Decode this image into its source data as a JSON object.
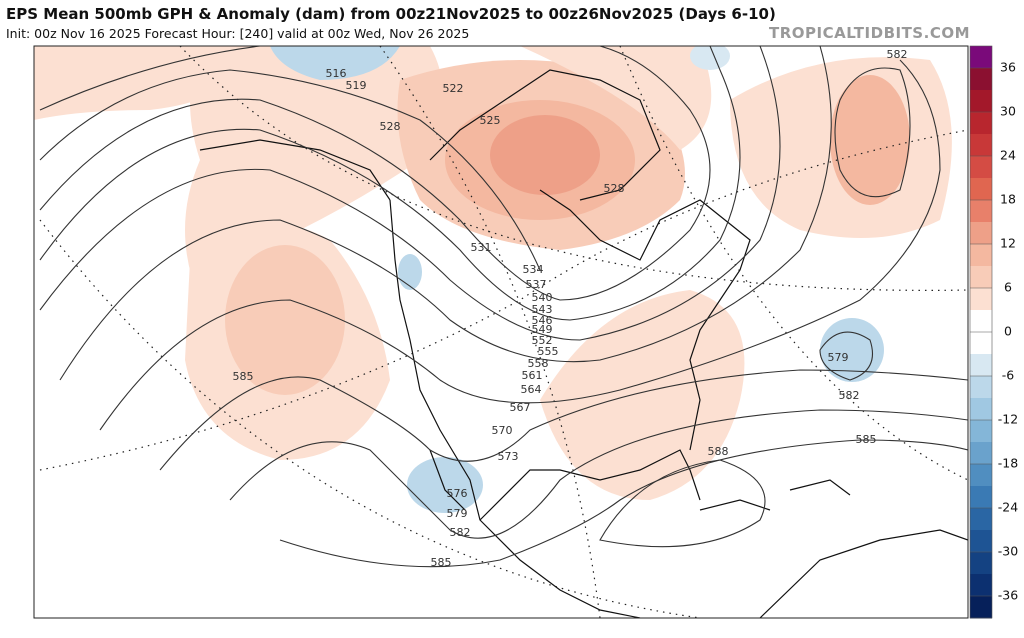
{
  "header": {
    "title": "EPS Mean 500mb GPH & Anomaly (dam) from 00z21Nov2025 to 00z26Nov2025 (Days 6-10)",
    "subtitle": "Init: 00z Nov 16 2025   Forecast Hour: [240]   valid at 00z Wed, Nov 26 2025",
    "credit": "TROPICALTIDBITS.COM"
  },
  "contour_labels": [
    "516",
    "519",
    "522",
    "525",
    "528",
    "528",
    "531",
    "534",
    "537",
    "540",
    "543",
    "546",
    "549",
    "552",
    "555",
    "558",
    "561",
    "564",
    "567",
    "570",
    "573",
    "576",
    "579",
    "582",
    "585",
    "585",
    "588",
    "579",
    "582",
    "585",
    "582"
  ],
  "colorbar": {
    "ticks": [
      "36",
      "30",
      "24",
      "18",
      "12",
      "6",
      "0",
      "-6",
      "-12",
      "-18",
      "-24",
      "-30",
      "-36"
    ],
    "colors": [
      "#7a0a7a",
      "#8b1030",
      "#a3182a",
      "#b8262e",
      "#c83838",
      "#d44c44",
      "#e06650",
      "#e8806a",
      "#eea088",
      "#f4b8a0",
      "#f8ccb8",
      "#fce0d2",
      "#ffffff",
      "#ffffff",
      "#d8e8f2",
      "#bcd8ea",
      "#a0c8e2",
      "#84b6d8",
      "#6aa2cc",
      "#508ec0",
      "#3a7ab4",
      "#2a66a4",
      "#1e5494",
      "#144282",
      "#0c3070",
      "#06205a"
    ]
  }
}
